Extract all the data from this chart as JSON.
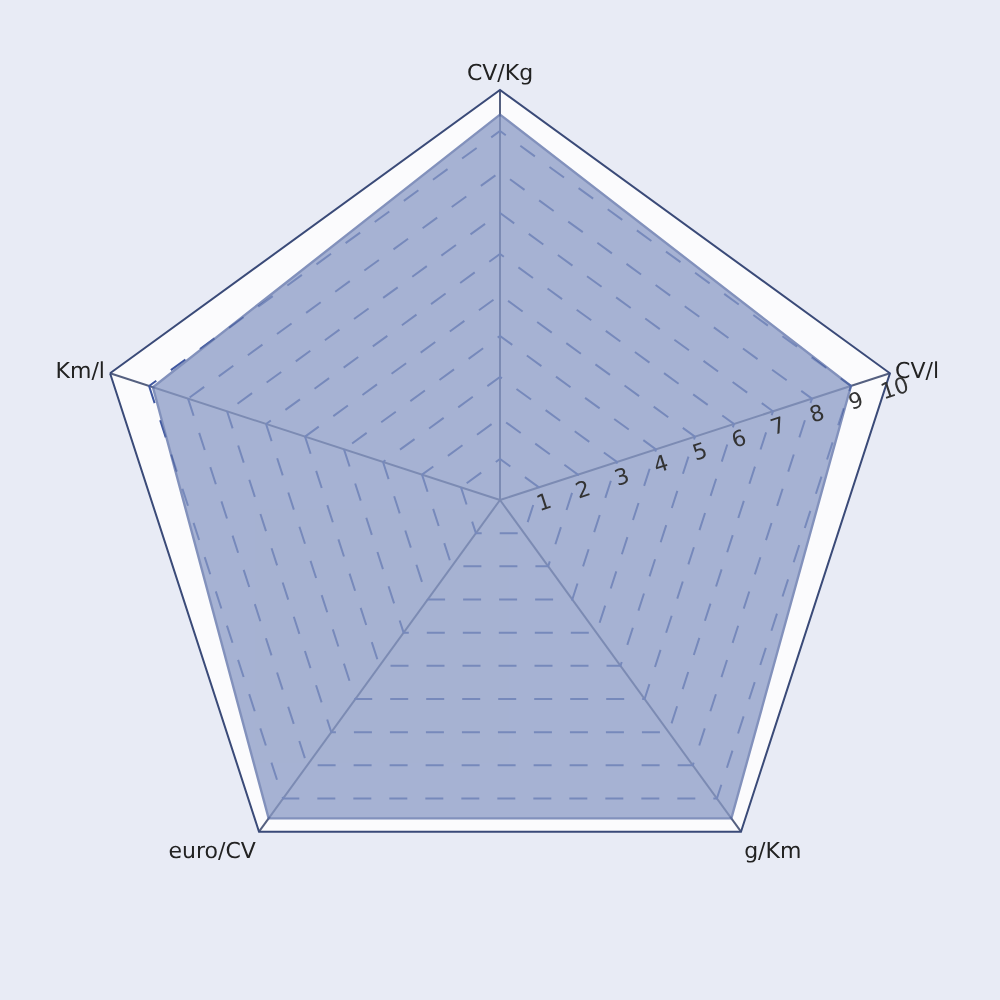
{
  "chart_data": {
    "type": "radar",
    "categories": [
      "CV/Kg",
      "CV/l",
      "g/Km",
      "euro/CV",
      "Km/l"
    ],
    "series": [
      {
        "color": "#8a9ac4",
        "values": [
          9.4,
          9.0,
          9.6,
          9.6,
          8.9
        ]
      }
    ],
    "ylim": [
      0,
      10
    ],
    "yticks": [
      1,
      2,
      3,
      4,
      5,
      6,
      7,
      8,
      9,
      10
    ],
    "grid": true,
    "line_style": "dashed"
  }
}
